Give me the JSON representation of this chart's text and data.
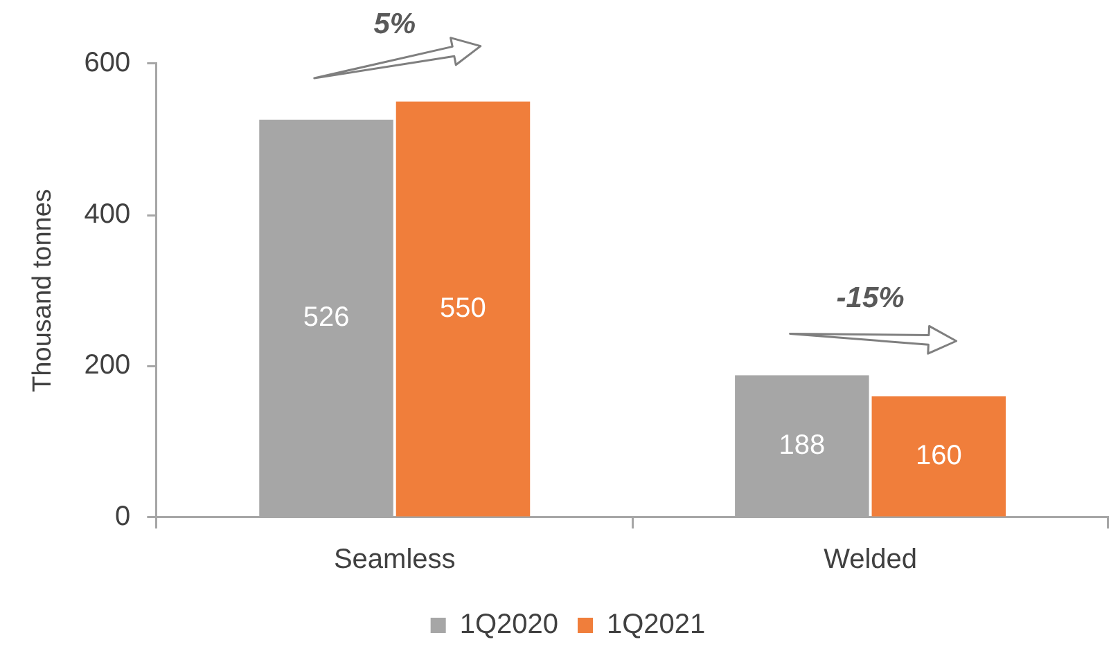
{
  "chart_data": {
    "type": "bar",
    "ylabel": "Thousand tonnes",
    "categories": [
      "Seamless",
      "Welded"
    ],
    "series": [
      {
        "name": "1Q2020",
        "color": "#a6a6a6",
        "values": [
          526,
          188
        ]
      },
      {
        "name": "1Q2021",
        "color": "#f07e3b",
        "values": [
          550,
          160
        ]
      }
    ],
    "ylim": [
      0,
      600
    ],
    "yticks": [
      0,
      200,
      400,
      600
    ],
    "data_labels": true,
    "legend": "bottom",
    "annotations": [
      "5%",
      "-15%"
    ]
  }
}
